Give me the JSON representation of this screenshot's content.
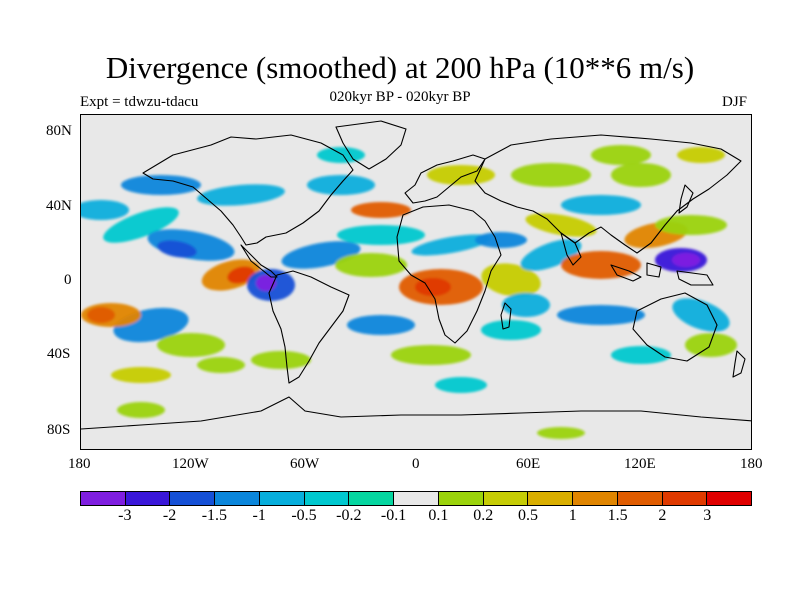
{
  "title": "Divergence (smoothed) at 200 hPa (10**6 m/s)",
  "experiment": "Expt = tdwzu-tdacu",
  "period": "020kyr BP - 020kyr BP",
  "season": "DJF",
  "map": {
    "type": "filled-contour world map",
    "projection": "cylindrical equidistant",
    "lat_labels": [
      "80N",
      "40N",
      "0",
      "40S",
      "80S"
    ],
    "lon_labels": [
      "180",
      "120W",
      "60W",
      "0",
      "60E",
      "120E",
      "180"
    ],
    "background_color": "#e8e8e8"
  },
  "colorbar": {
    "labels": [
      "-3",
      "-2",
      "-1.5",
      "-1",
      "-0.5",
      "-0.2",
      "-0.1",
      "0.1",
      "0.2",
      "0.5",
      "1",
      "1.5",
      "2",
      "3"
    ],
    "colors": [
      "#7f1ee0",
      "#3a17d9",
      "#1550d6",
      "#0b86db",
      "#07aedc",
      "#00c8cf",
      "#05d6a0",
      "#e8e8e8",
      "#9bd30c",
      "#c6cc05",
      "#d9ae00",
      "#e08500",
      "#e05c00",
      "#e03a00",
      "#e00000"
    ]
  }
}
